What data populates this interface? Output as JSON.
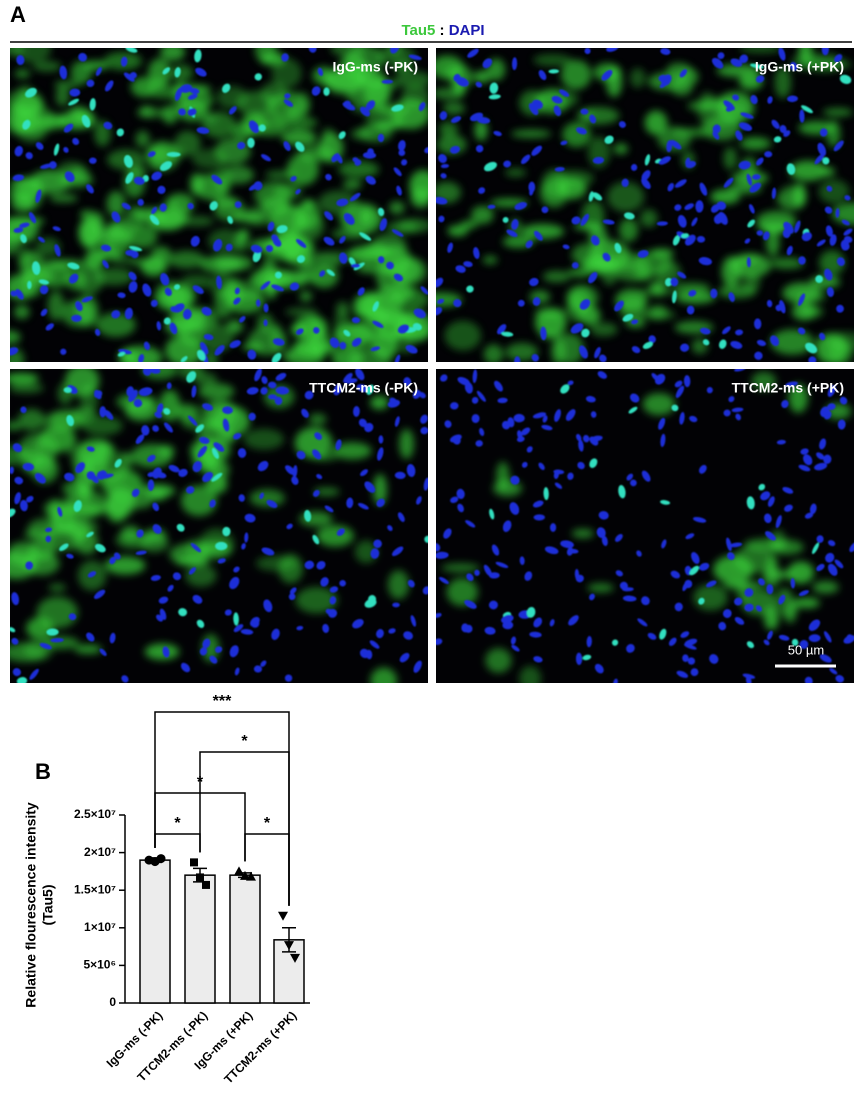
{
  "panel_a": {
    "label": "A",
    "title_parts": [
      "Tau5",
      ":",
      "DAPI"
    ],
    "images": [
      {
        "label": "IgG-ms (-PK)"
      },
      {
        "label": "IgG-ms (+PK)"
      },
      {
        "label": "TTCM2-ms (-PK)"
      },
      {
        "label": "TTCM2-ms (+PK)"
      }
    ],
    "scale_bar": "50 µm"
  },
  "chart_data": {
    "type": "bar",
    "panel_label": "B",
    "ylabel": [
      "Relative flourescence intensity",
      "(Tau5)"
    ],
    "categories": [
      "IgG-ms (-PK)",
      "TTCM2-ms (-PK)",
      "IgG-ms (+PK)",
      "TTCM2-ms (+PK)"
    ],
    "values": [
      19000000,
      17000000,
      17000000,
      8400000
    ],
    "errors": [
      300000,
      900000,
      300000,
      1600000
    ],
    "points": [
      [
        19000000,
        18800000,
        19200000
      ],
      [
        18700000,
        16700000,
        15700000
      ],
      [
        17500000,
        16900000,
        16800000
      ],
      [
        11600000,
        7700000,
        6000000
      ]
    ],
    "color": "#ececec",
    "ylim": [
      0,
      25000000
    ],
    "yticks": [
      0,
      {
        "value": 5000000,
        "label": "5×10⁶"
      },
      {
        "value": 10000000,
        "label": "1×10⁷"
      },
      {
        "value": 15000000,
        "label": "1.5×10⁷"
      },
      {
        "value": 20000000,
        "label": "2×10⁷"
      },
      {
        "value": 25000000,
        "label": "2.5×10⁷"
      }
    ],
    "significance": [
      "***",
      "*",
      "*",
      "*",
      "*"
    ]
  }
}
